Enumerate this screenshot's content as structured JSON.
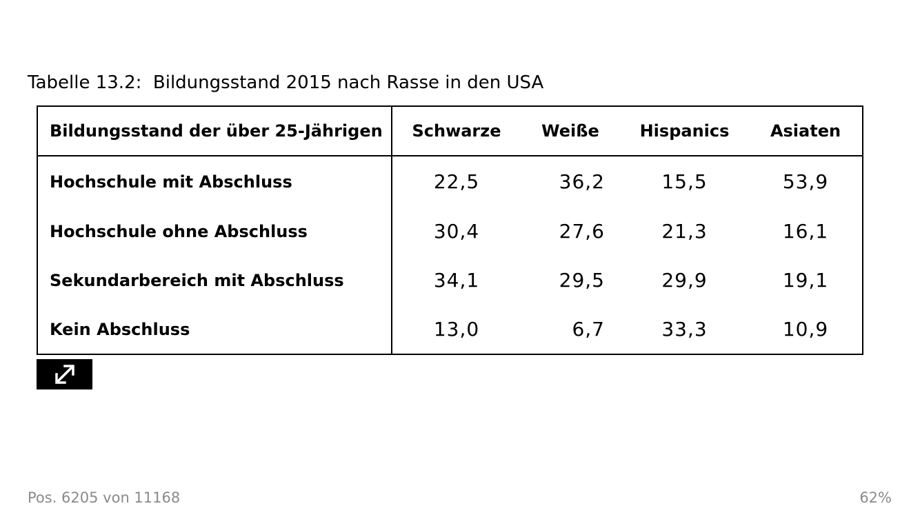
{
  "caption": "Tabelle 13.2:  Bildungsstand 2015 nach Rasse in den USA",
  "table": {
    "row_header": "Bildungsstand der über 25-Jährigen",
    "columns": [
      "Schwarze",
      "Weiße",
      "Hispanics",
      "Asiaten"
    ],
    "rows": [
      {
        "label": "Hochschule mit Abschluss",
        "values": [
          "22,5",
          "36,2",
          "15,5",
          "53,9"
        ]
      },
      {
        "label": "Hochschule ohne Abschluss",
        "values": [
          "30,4",
          "27,6",
          "21,3",
          "16,1"
        ]
      },
      {
        "label": "Sekundarbereich mit Abschluss",
        "values": [
          "34,1",
          "29,5",
          "29,9",
          "19,1"
        ]
      },
      {
        "label": "Kein Abschluss",
        "values": [
          "13,0",
          "6,7",
          "33,3",
          "10,9"
        ]
      }
    ]
  },
  "expand_button": {
    "icon": "expand-icon"
  },
  "footer": {
    "position": "Pos. 6205 von 11168",
    "progress": "62%"
  }
}
